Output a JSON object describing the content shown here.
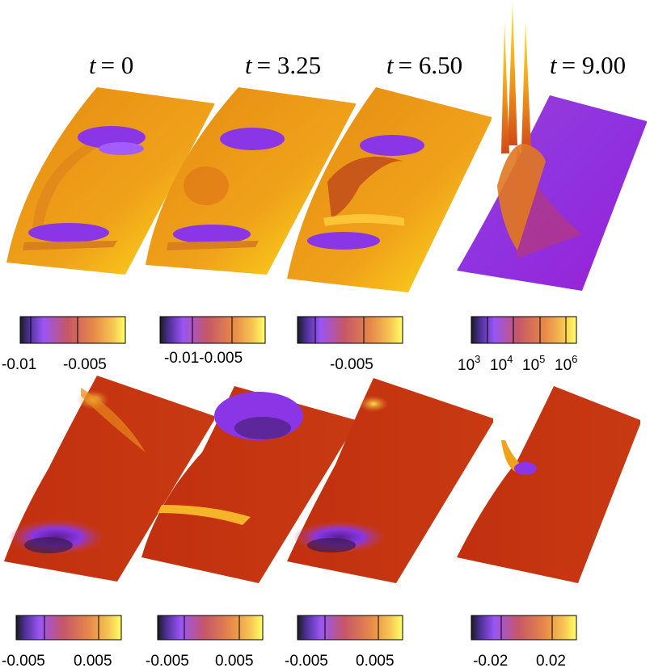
{
  "times": [
    {
      "var": "t",
      "value": "= 0"
    },
    {
      "var": "t",
      "value": "= 3.25"
    },
    {
      "var": "t",
      "value": "= 6.50"
    },
    {
      "var": "t",
      "value": "= 9.00"
    }
  ],
  "top_colorbars": [
    {
      "labels": [
        "-0.01",
        "-0.005"
      ]
    },
    {
      "labels": [
        "-0.01-0.005"
      ]
    },
    {
      "labels": [
        "-0.005"
      ]
    },
    {
      "labels": [
        {
          "base": "10",
          "exp": "3"
        },
        {
          "base": "10",
          "exp": "4"
        },
        {
          "base": "10",
          "exp": "5"
        },
        {
          "base": "10",
          "exp": "6"
        }
      ]
    }
  ],
  "bottom_colorbars": [
    {
      "labels": [
        "-0.005",
        "0.005"
      ]
    },
    {
      "labels": [
        "-0.005",
        "0.005"
      ]
    },
    {
      "labels": [
        "-0.005",
        "0.005"
      ]
    },
    {
      "labels": [
        "-0.02",
        "0.02"
      ]
    }
  ],
  "palette": [
    "#1a1a1a",
    "#5a3aa8",
    "#a35cff",
    "#c85a6a",
    "#e48a3c",
    "#f7c24a",
    "#ffff66"
  ]
}
